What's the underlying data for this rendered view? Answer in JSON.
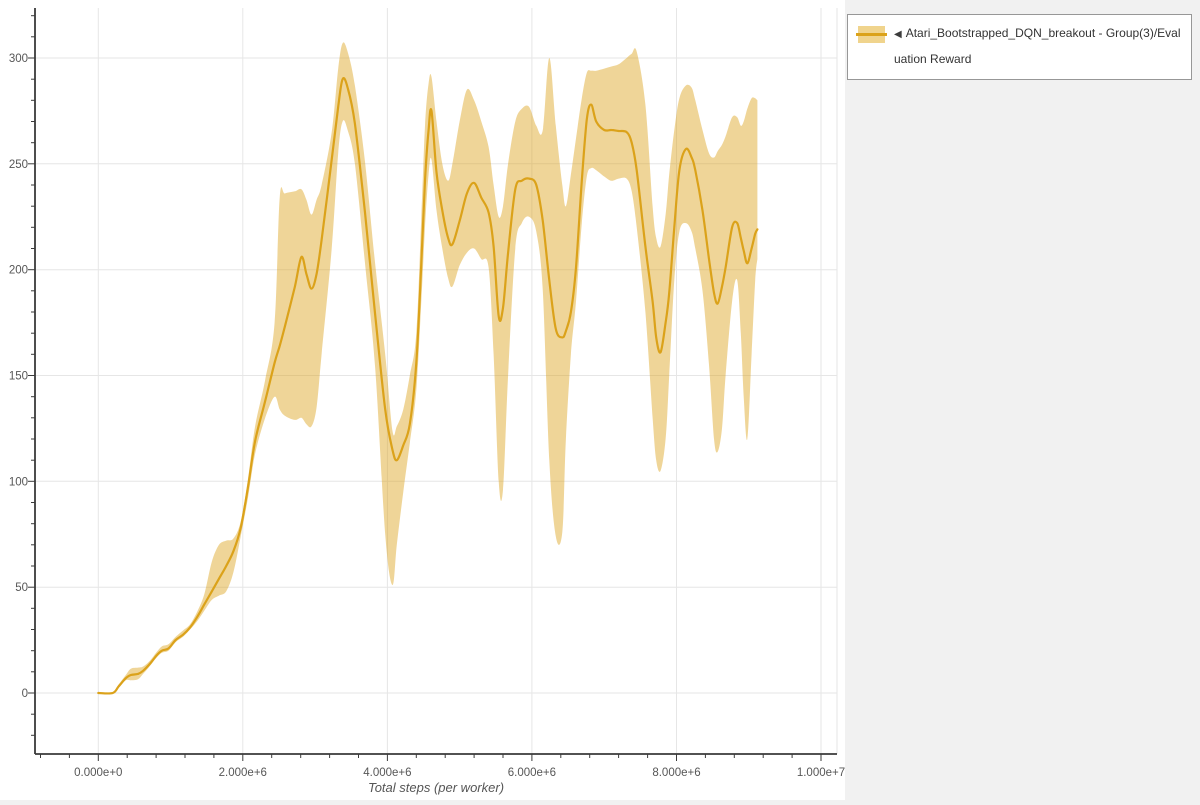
{
  "page": {
    "background_color": "#f1f1f1",
    "figure_background_color": "#ffffff"
  },
  "legend": {
    "collapse_icon": "◀",
    "series_label": "Atari_Bootstrapped_DQN_breakout - Group(3)/Evaluation Reward",
    "swatch": {
      "band_color": "#f0d48d",
      "line_color": "#dba21a"
    }
  },
  "chart_data": {
    "type": "line",
    "title": "",
    "xlabel": "Total steps (per worker)",
    "ylabel": "",
    "legend_position": "top-right-outside",
    "grid": true,
    "style": {
      "line": "#dba21a",
      "band": "rgba(219,162,26,0.45)",
      "grid": "#e6e6e6",
      "axis": "#3a3a3a",
      "tick_label": "#565656",
      "figure_bg": "#ffffff"
    },
    "x_axis": {
      "range": [
        -876000,
        10220000
      ],
      "tick_values": [
        0,
        2000000,
        4000000,
        6000000,
        8000000,
        10000000
      ],
      "tick_labels": [
        "0.000e+0",
        "2.000e+6",
        "4.000e+6",
        "6.000e+6",
        "8.000e+6",
        "1.000e+7"
      ],
      "minor_tick_step": 400000
    },
    "y_axis": {
      "range": [
        -28.8,
        323.6
      ],
      "tick_values": [
        0,
        50,
        100,
        150,
        200,
        250,
        300
      ],
      "tick_labels": [
        "0",
        "50",
        "100",
        "150",
        "200",
        "250",
        "300"
      ],
      "minor_tick_step": 10
    },
    "series": [
      {
        "name": "Atari_Bootstrapped_DQN_breakout - Group(3)/Evaluation Reward",
        "color": "#dba21a",
        "band_color": "rgba(219,162,26,0.45)",
        "x": [
          0,
          200000,
          280000,
          380000,
          450000,
          550000,
          620000,
          720000,
          800000,
          880000,
          970000,
          1070000,
          1170000,
          1270000,
          1370000,
          1470000,
          1570000,
          1670000,
          1770000,
          1870000,
          1970000,
          2070000,
          2170000,
          2310000,
          2440000,
          2510000,
          2580000,
          2720000,
          2810000,
          2880000,
          2950000,
          3020000,
          3090000,
          3230000,
          3320000,
          3380000,
          3450000,
          3550000,
          3690000,
          3830000,
          3970000,
          4070000,
          4130000,
          4220000,
          4310000,
          4400000,
          4470000,
          4520000,
          4570000,
          4610000,
          4680000,
          4760000,
          4840000,
          4900000,
          5000000,
          5100000,
          5200000,
          5300000,
          5400000,
          5470000,
          5540000,
          5600000,
          5670000,
          5770000,
          5860000,
          5960000,
          6060000,
          6150000,
          6240000,
          6330000,
          6420000,
          6470000,
          6540000,
          6610000,
          6690000,
          6760000,
          6820000,
          6890000,
          7000000,
          7100000,
          7200000,
          7310000,
          7380000,
          7450000,
          7570000,
          7670000,
          7720000,
          7780000,
          7850000,
          7900000,
          7970000,
          8040000,
          8130000,
          8210000,
          8260000,
          8360000,
          8450000,
          8520000,
          8570000,
          8630000,
          8680000,
          8770000,
          8840000,
          8890000,
          8930000,
          8980000,
          9040000,
          9090000,
          9120000
        ],
        "mean": [
          0,
          0,
          3,
          7,
          8.5,
          9,
          10.5,
          14,
          17.5,
          20,
          21,
          25,
          27.5,
          31,
          36,
          42,
          48,
          54,
          60,
          67,
          78,
          97,
          119,
          138,
          156,
          164,
          173,
          192,
          206,
          198,
          191,
          198,
          214,
          252,
          277,
          290,
          286,
          269,
          227,
          179,
          134,
          115,
          110,
          117,
          127,
          156,
          203,
          242,
          266,
          275,
          246,
          228,
          215,
          212,
          223,
          236,
          241,
          234,
          227,
          211,
          178,
          182,
          208,
          238,
          242,
          243,
          240,
          223,
          195,
          172,
          168,
          171,
          180,
          201,
          242,
          271,
          278,
          270,
          266,
          266,
          265.5,
          265,
          260,
          247,
          211,
          185,
          168,
          161,
          175,
          189,
          220,
          247,
          257,
          253,
          247,
          228,
          205,
          189,
          184,
          192,
          201,
          220,
          222,
          215,
          209,
          203,
          210,
          217,
          219
        ],
        "band_lower": [
          0,
          0,
          2.5,
          6,
          6,
          6.5,
          9,
          13,
          16.5,
          19,
          20,
          24,
          26.5,
          30,
          34,
          39,
          44,
          46,
          48,
          57,
          74,
          92,
          113,
          130,
          140,
          134,
          131,
          129,
          130,
          127,
          126,
          135,
          160,
          210,
          255,
          270,
          266,
          250,
          203,
          154,
          75,
          51,
          70,
          95,
          118,
          143,
          185,
          220,
          245,
          252,
          228,
          210,
          196,
          192,
          202,
          208,
          210,
          205,
          201,
          160,
          100,
          96,
          150,
          210,
          222,
          225,
          218,
          190,
          110,
          74,
          76,
          120,
          160,
          185,
          222,
          244,
          248,
          247,
          244,
          242,
          243,
          243,
          237,
          220,
          180,
          130,
          110,
          105,
          120,
          150,
          195,
          218,
          222,
          218,
          210,
          190,
          155,
          120,
          114,
          125,
          150,
          185,
          195,
          170,
          140,
          120,
          160,
          195,
          205
        ],
        "band_upper": [
          0.5,
          0.5,
          4,
          8.5,
          11.5,
          12,
          12.5,
          15.5,
          19,
          22,
          23,
          26.5,
          29.5,
          32.5,
          38.5,
          47,
          62,
          70,
          72,
          73,
          81,
          101,
          126,
          148,
          175,
          234,
          236,
          237,
          238,
          233,
          226,
          233,
          240,
          265,
          295,
          307,
          303,
          287,
          251,
          203,
          160,
          124,
          126,
          134,
          150,
          170,
          225,
          268,
          288,
          291,
          270,
          250,
          242,
          250,
          270,
          285,
          280,
          270,
          258,
          240,
          225,
          230,
          250,
          270,
          276,
          277,
          268,
          266,
          300,
          268,
          240,
          230,
          245,
          262,
          281,
          293,
          294,
          294,
          295,
          296,
          297,
          300,
          302,
          303,
          278,
          230,
          215,
          211,
          226,
          245,
          266,
          281,
          287,
          286,
          280,
          266,
          255,
          253,
          256,
          259,
          263,
          272,
          272,
          268,
          270,
          276,
          281,
          281,
          280
        ]
      }
    ]
  }
}
